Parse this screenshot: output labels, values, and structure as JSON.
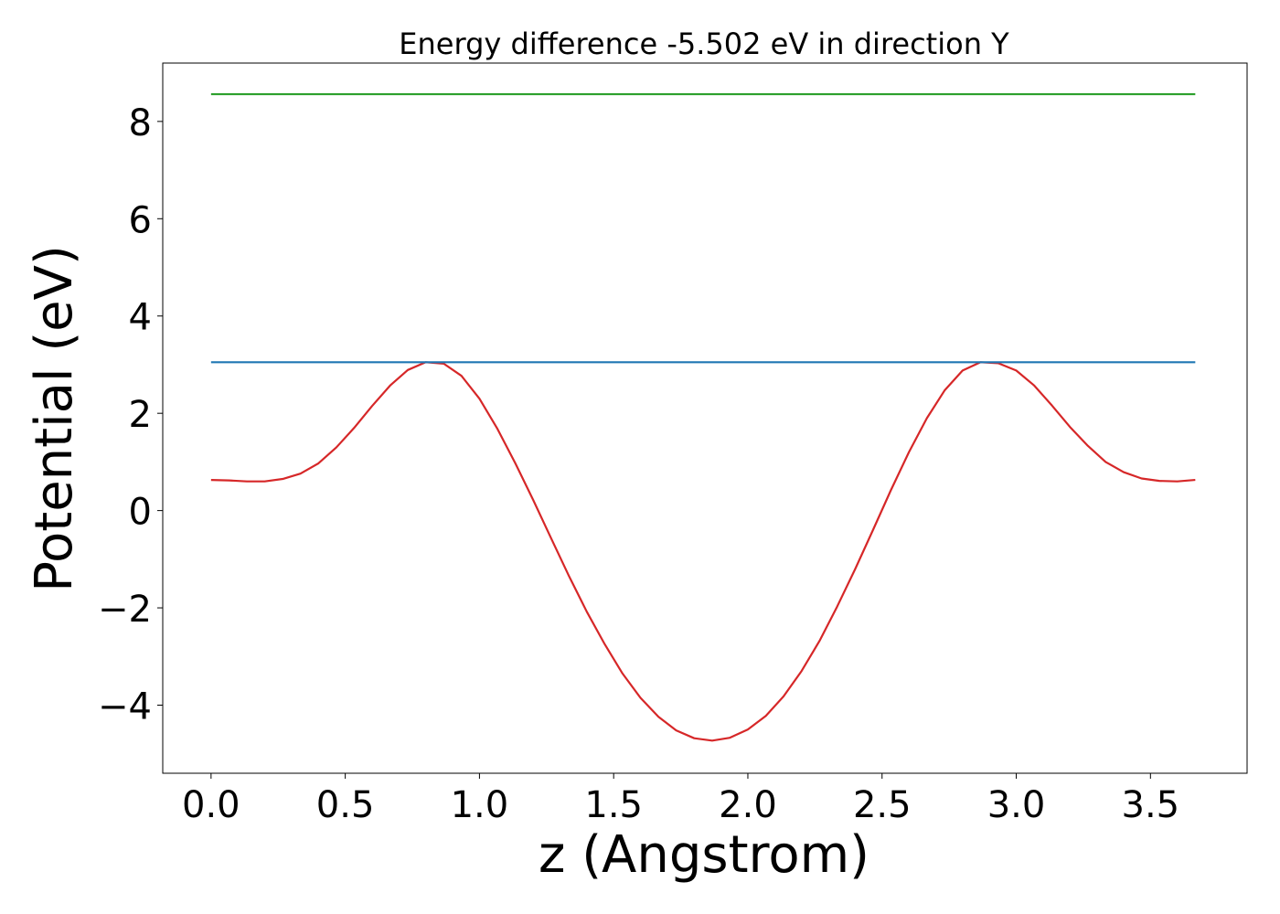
{
  "chart_data": {
    "type": "line",
    "title": "Energy difference -5.502 eV in direction Y",
    "xlabel": "z (Angstrom)",
    "ylabel": "Potential (eV)",
    "xlim": [
      -0.18,
      3.86
    ],
    "ylim": [
      -5.4,
      9.2
    ],
    "xticks": [
      0.0,
      0.5,
      1.0,
      1.5,
      2.0,
      2.5,
      3.0,
      3.5
    ],
    "xtick_labels": [
      "0.0",
      "0.5",
      "1.0",
      "1.5",
      "2.0",
      "2.5",
      "3.0",
      "3.5"
    ],
    "yticks": [
      -4,
      -2,
      0,
      2,
      4,
      6,
      8
    ],
    "ytick_labels": [
      "−4",
      "−2",
      "0",
      "2",
      "4",
      "6",
      "8"
    ],
    "grid": false,
    "legend": "none",
    "series": [
      {
        "color": "#d62728",
        "x": [
          0.0,
          0.067,
          0.133,
          0.2,
          0.267,
          0.333,
          0.4,
          0.467,
          0.533,
          0.6,
          0.667,
          0.733,
          0.8,
          0.867,
          0.933,
          1.0,
          1.067,
          1.133,
          1.2,
          1.267,
          1.333,
          1.4,
          1.467,
          1.533,
          1.6,
          1.667,
          1.733,
          1.8,
          1.867,
          1.933,
          2.0,
          2.067,
          2.133,
          2.2,
          2.267,
          2.333,
          2.4,
          2.467,
          2.533,
          2.6,
          2.667,
          2.733,
          2.8,
          2.867,
          2.933,
          3.0,
          3.067,
          3.133,
          3.2,
          3.267,
          3.333,
          3.4,
          3.467,
          3.533,
          3.6,
          3.667
        ],
        "y": [
          0.63,
          0.62,
          0.6,
          0.6,
          0.65,
          0.76,
          0.97,
          1.3,
          1.7,
          2.15,
          2.57,
          2.89,
          3.05,
          3.02,
          2.77,
          2.3,
          1.68,
          0.98,
          0.22,
          -0.57,
          -1.34,
          -2.08,
          -2.75,
          -3.35,
          -3.85,
          -4.24,
          -4.52,
          -4.68,
          -4.73,
          -4.67,
          -4.5,
          -4.22,
          -3.82,
          -3.3,
          -2.68,
          -1.97,
          -1.2,
          -0.39,
          0.42,
          1.2,
          1.9,
          2.47,
          2.88,
          3.05,
          3.03,
          2.88,
          2.57,
          2.16,
          1.72,
          1.33,
          1.0,
          0.79,
          0.66,
          0.61,
          0.6,
          0.63
        ]
      },
      {
        "color": "#1f77b4",
        "x": [
          0.0,
          3.667
        ],
        "y": [
          3.05,
          3.05
        ]
      },
      {
        "color": "#2ca02c",
        "x": [
          0.0,
          3.667
        ],
        "y": [
          8.56,
          8.56
        ]
      }
    ]
  }
}
